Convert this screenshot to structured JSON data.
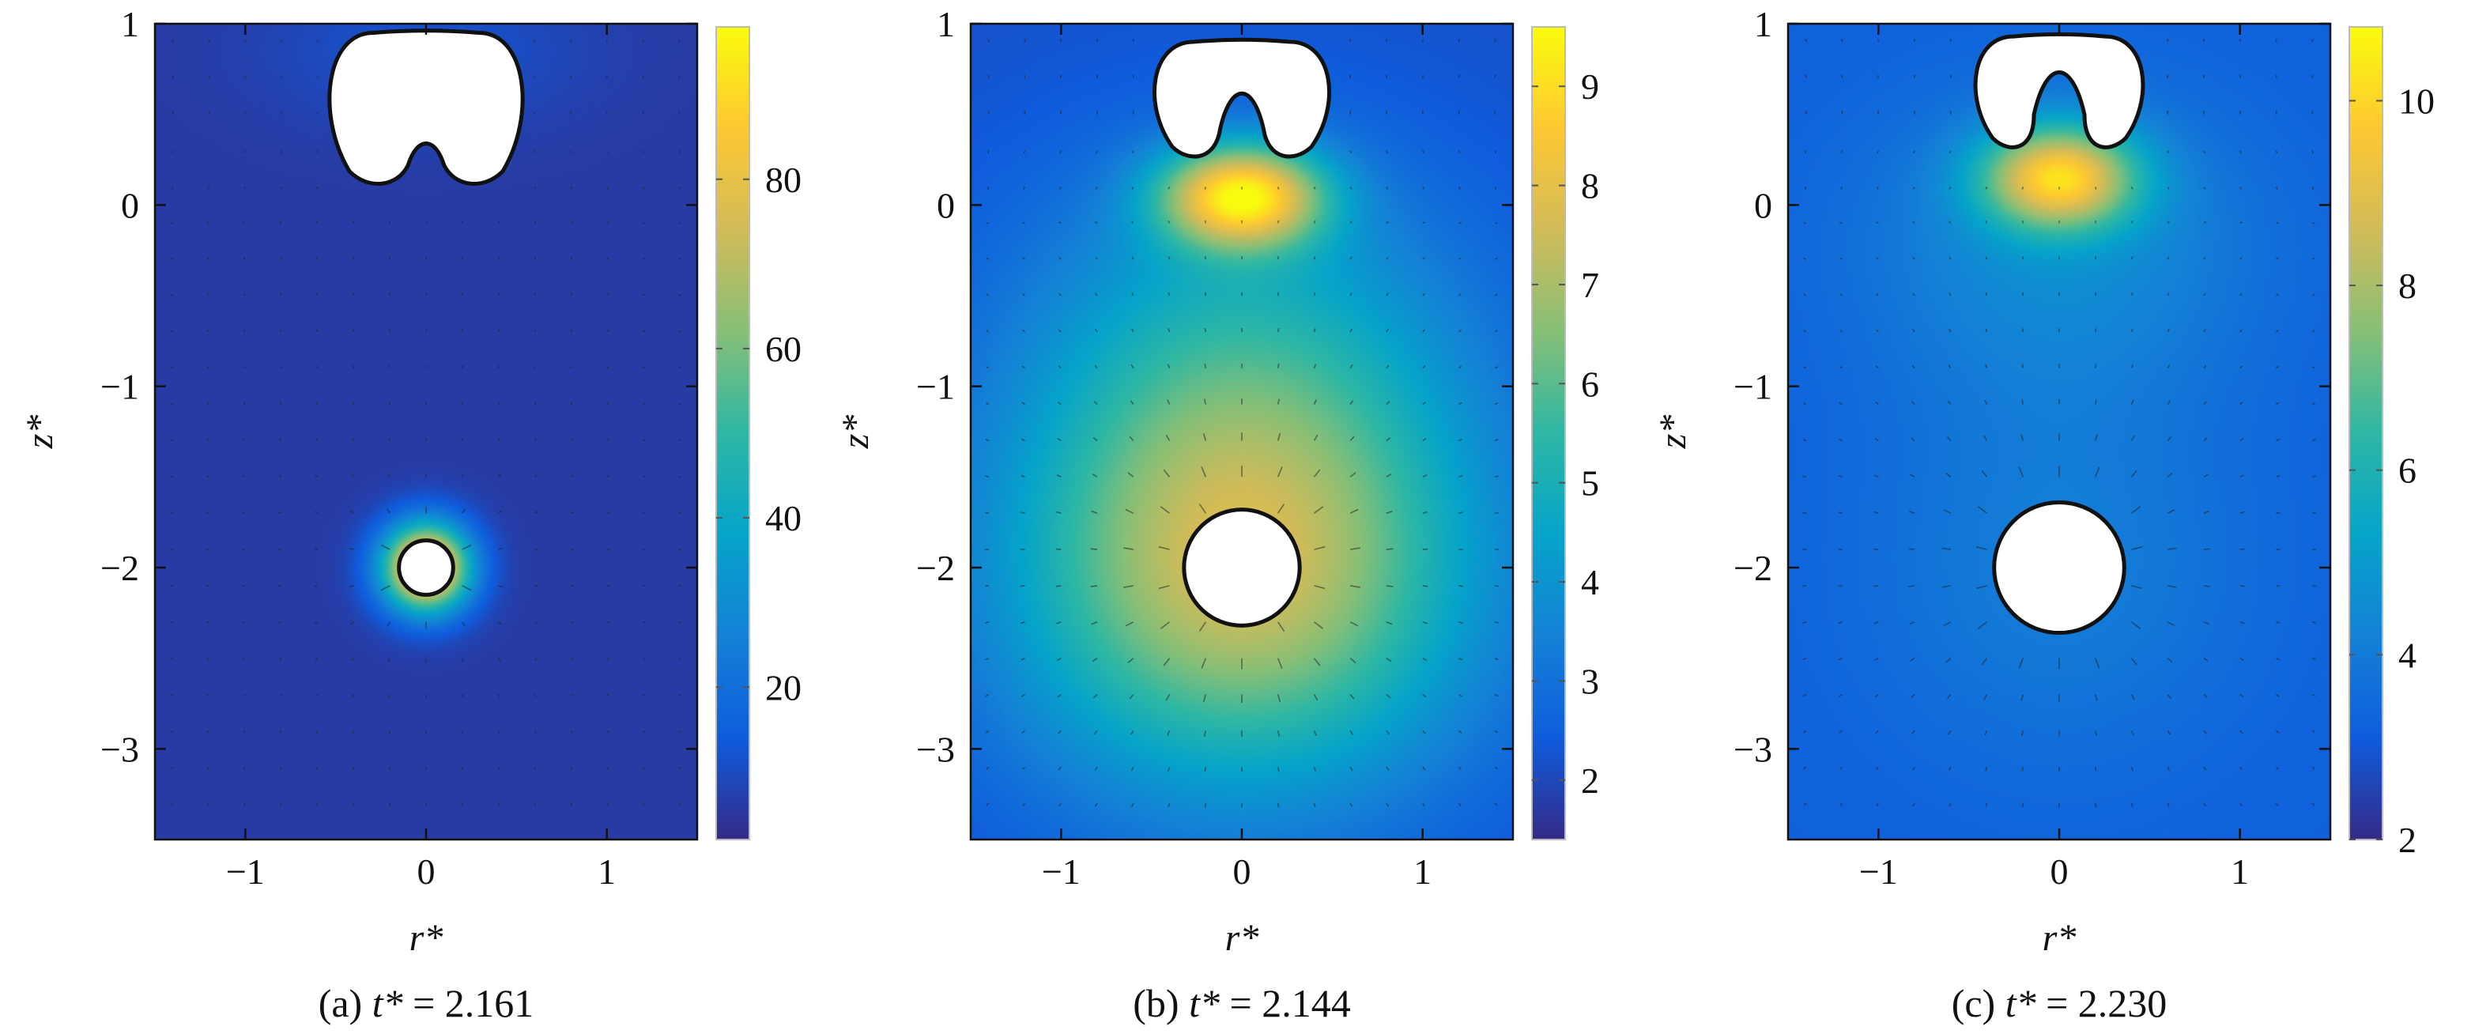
{
  "figure": {
    "panels_count": 3
  },
  "chart_data": [
    {
      "type": "heatmap",
      "panel_label": "(a)",
      "caption_var": "t*",
      "caption_eq": "= 2.161",
      "xlabel": "r*",
      "ylabel": "z*",
      "xlim": [
        -1.5,
        1.5
      ],
      "ylim": [
        -3.5,
        1
      ],
      "xticks": [
        -1,
        0,
        1
      ],
      "xtick_labels": [
        "−1",
        "0",
        "1"
      ],
      "yticks": [
        1,
        0,
        -1,
        -2,
        -3
      ],
      "ytick_labels": [
        "1",
        "0",
        "−1",
        "−2",
        "−3"
      ],
      "colorbar": {
        "min": 2,
        "max": 98,
        "ticks": [
          80,
          60,
          40,
          20
        ],
        "tick_labels": [
          "80",
          "60",
          "40",
          "20"
        ]
      },
      "colormap": [
        "#352a87",
        "#0f5cdd",
        "#1481d6",
        "#06a4ca",
        "#2eb7a4",
        "#87bf77",
        "#d1bb59",
        "#fec832",
        "#f9fb0e"
      ],
      "field": {
        "background": 6,
        "hot_spots": [
          {
            "r": 0,
            "z": -2.0,
            "peak": 98,
            "sigma_r": 0.17,
            "sigma_z": 0.17
          },
          {
            "r": 0,
            "z": 0.85,
            "peak": 6,
            "sigma_r": 0.6,
            "sigma_z": 0.3
          }
        ]
      },
      "bubbles": [
        {
          "kind": "circle",
          "r": 0,
          "z": -2.0,
          "radius": 0.15
        },
        {
          "kind": "toroidal",
          "z_top": 0.95,
          "z_bottom": 0.12,
          "half_width": 0.53,
          "jet_tip_z": 0.4,
          "jet_base_half_width": 0.1
        }
      ],
      "vectors": {
        "magnitude_scale": 0.08
      }
    },
    {
      "type": "heatmap",
      "panel_label": "(b)",
      "caption_var": "t*",
      "caption_eq": "= 2.144",
      "xlabel": "r*",
      "ylabel": "z*",
      "xlim": [
        -1.5,
        1.5
      ],
      "ylim": [
        -3.5,
        1
      ],
      "xticks": [
        -1,
        0,
        1
      ],
      "xtick_labels": [
        "−1",
        "0",
        "1"
      ],
      "yticks": [
        1,
        0,
        -1,
        -2,
        -3
      ],
      "ytick_labels": [
        "1",
        "0",
        "−1",
        "−2",
        "−3"
      ],
      "colorbar": {
        "min": 1.4,
        "max": 9.6,
        "ticks": [
          9,
          8,
          7,
          6,
          5,
          4,
          3,
          2
        ],
        "tick_labels": [
          "9",
          "8",
          "7",
          "6",
          "5",
          "4",
          "3",
          "2"
        ]
      },
      "colormap": [
        "#352a87",
        "#0f5cdd",
        "#1481d6",
        "#06a4ca",
        "#2eb7a4",
        "#87bf77",
        "#d1bb59",
        "#fec832",
        "#f9fb0e"
      ],
      "field": {
        "background": 2.2,
        "hot_spots": [
          {
            "r": 0,
            "z": -2.0,
            "peak": 5.4,
            "sigma_r": 0.9,
            "sigma_z": 0.85
          },
          {
            "r": 0,
            "z": 0.05,
            "peak": 6.3,
            "sigma_r": 0.32,
            "sigma_z": 0.2
          },
          {
            "r": 0,
            "z": -0.6,
            "peak": 1.6,
            "sigma_r": 0.9,
            "sigma_z": 0.7
          }
        ]
      },
      "bubbles": [
        {
          "kind": "circle",
          "r": 0,
          "z": -2.0,
          "radius": 0.32
        },
        {
          "kind": "toroidal",
          "z_top": 0.9,
          "z_bottom": 0.27,
          "half_width": 0.48,
          "jet_tip_z": 0.7,
          "jet_base_half_width": 0.12
        }
      ],
      "vectors": {
        "magnitude_scale": 0.6
      }
    },
    {
      "type": "heatmap",
      "panel_label": "(c)",
      "caption_var": "t*",
      "caption_eq": "= 2.230",
      "xlabel": "r*",
      "ylabel": "z*",
      "xlim": [
        -1.5,
        1.5
      ],
      "ylim": [
        -3.5,
        1
      ],
      "xticks": [
        -1,
        0,
        1
      ],
      "xtick_labels": [
        "−1",
        "0",
        "1"
      ],
      "yticks": [
        1,
        0,
        -1,
        -2,
        -3
      ],
      "ytick_labels": [
        "1",
        "0",
        "−1",
        "−2",
        "−3"
      ],
      "colorbar": {
        "min": 2,
        "max": 10.8,
        "ticks": [
          10,
          8,
          6,
          4,
          2
        ],
        "tick_labels": [
          "10",
          "8",
          "6",
          "4",
          "2"
        ]
      },
      "colormap": [
        "#352a87",
        "#0f5cdd",
        "#1481d6",
        "#06a4ca",
        "#2eb7a4",
        "#87bf77",
        "#d1bb59",
        "#fec832",
        "#f9fb0e"
      ],
      "field": {
        "background": 3.2,
        "hot_spots": [
          {
            "r": 0,
            "z": 0.15,
            "peak": 6.0,
            "sigma_r": 0.3,
            "sigma_z": 0.2
          },
          {
            "r": 0,
            "z": -0.2,
            "peak": 1.3,
            "sigma_r": 0.8,
            "sigma_z": 0.6
          },
          {
            "r": 0,
            "z": -2.0,
            "peak": 0.9,
            "sigma_r": 0.8,
            "sigma_z": 0.8
          }
        ]
      },
      "bubbles": [
        {
          "kind": "circle",
          "r": 0,
          "z": -2.0,
          "radius": 0.36
        },
        {
          "kind": "toroidal",
          "z_top": 0.93,
          "z_bottom": 0.32,
          "half_width": 0.46,
          "jet_tip_z": 0.83,
          "jet_base_half_width": 0.14
        }
      ],
      "vectors": {
        "magnitude_scale": 0.5
      }
    }
  ]
}
